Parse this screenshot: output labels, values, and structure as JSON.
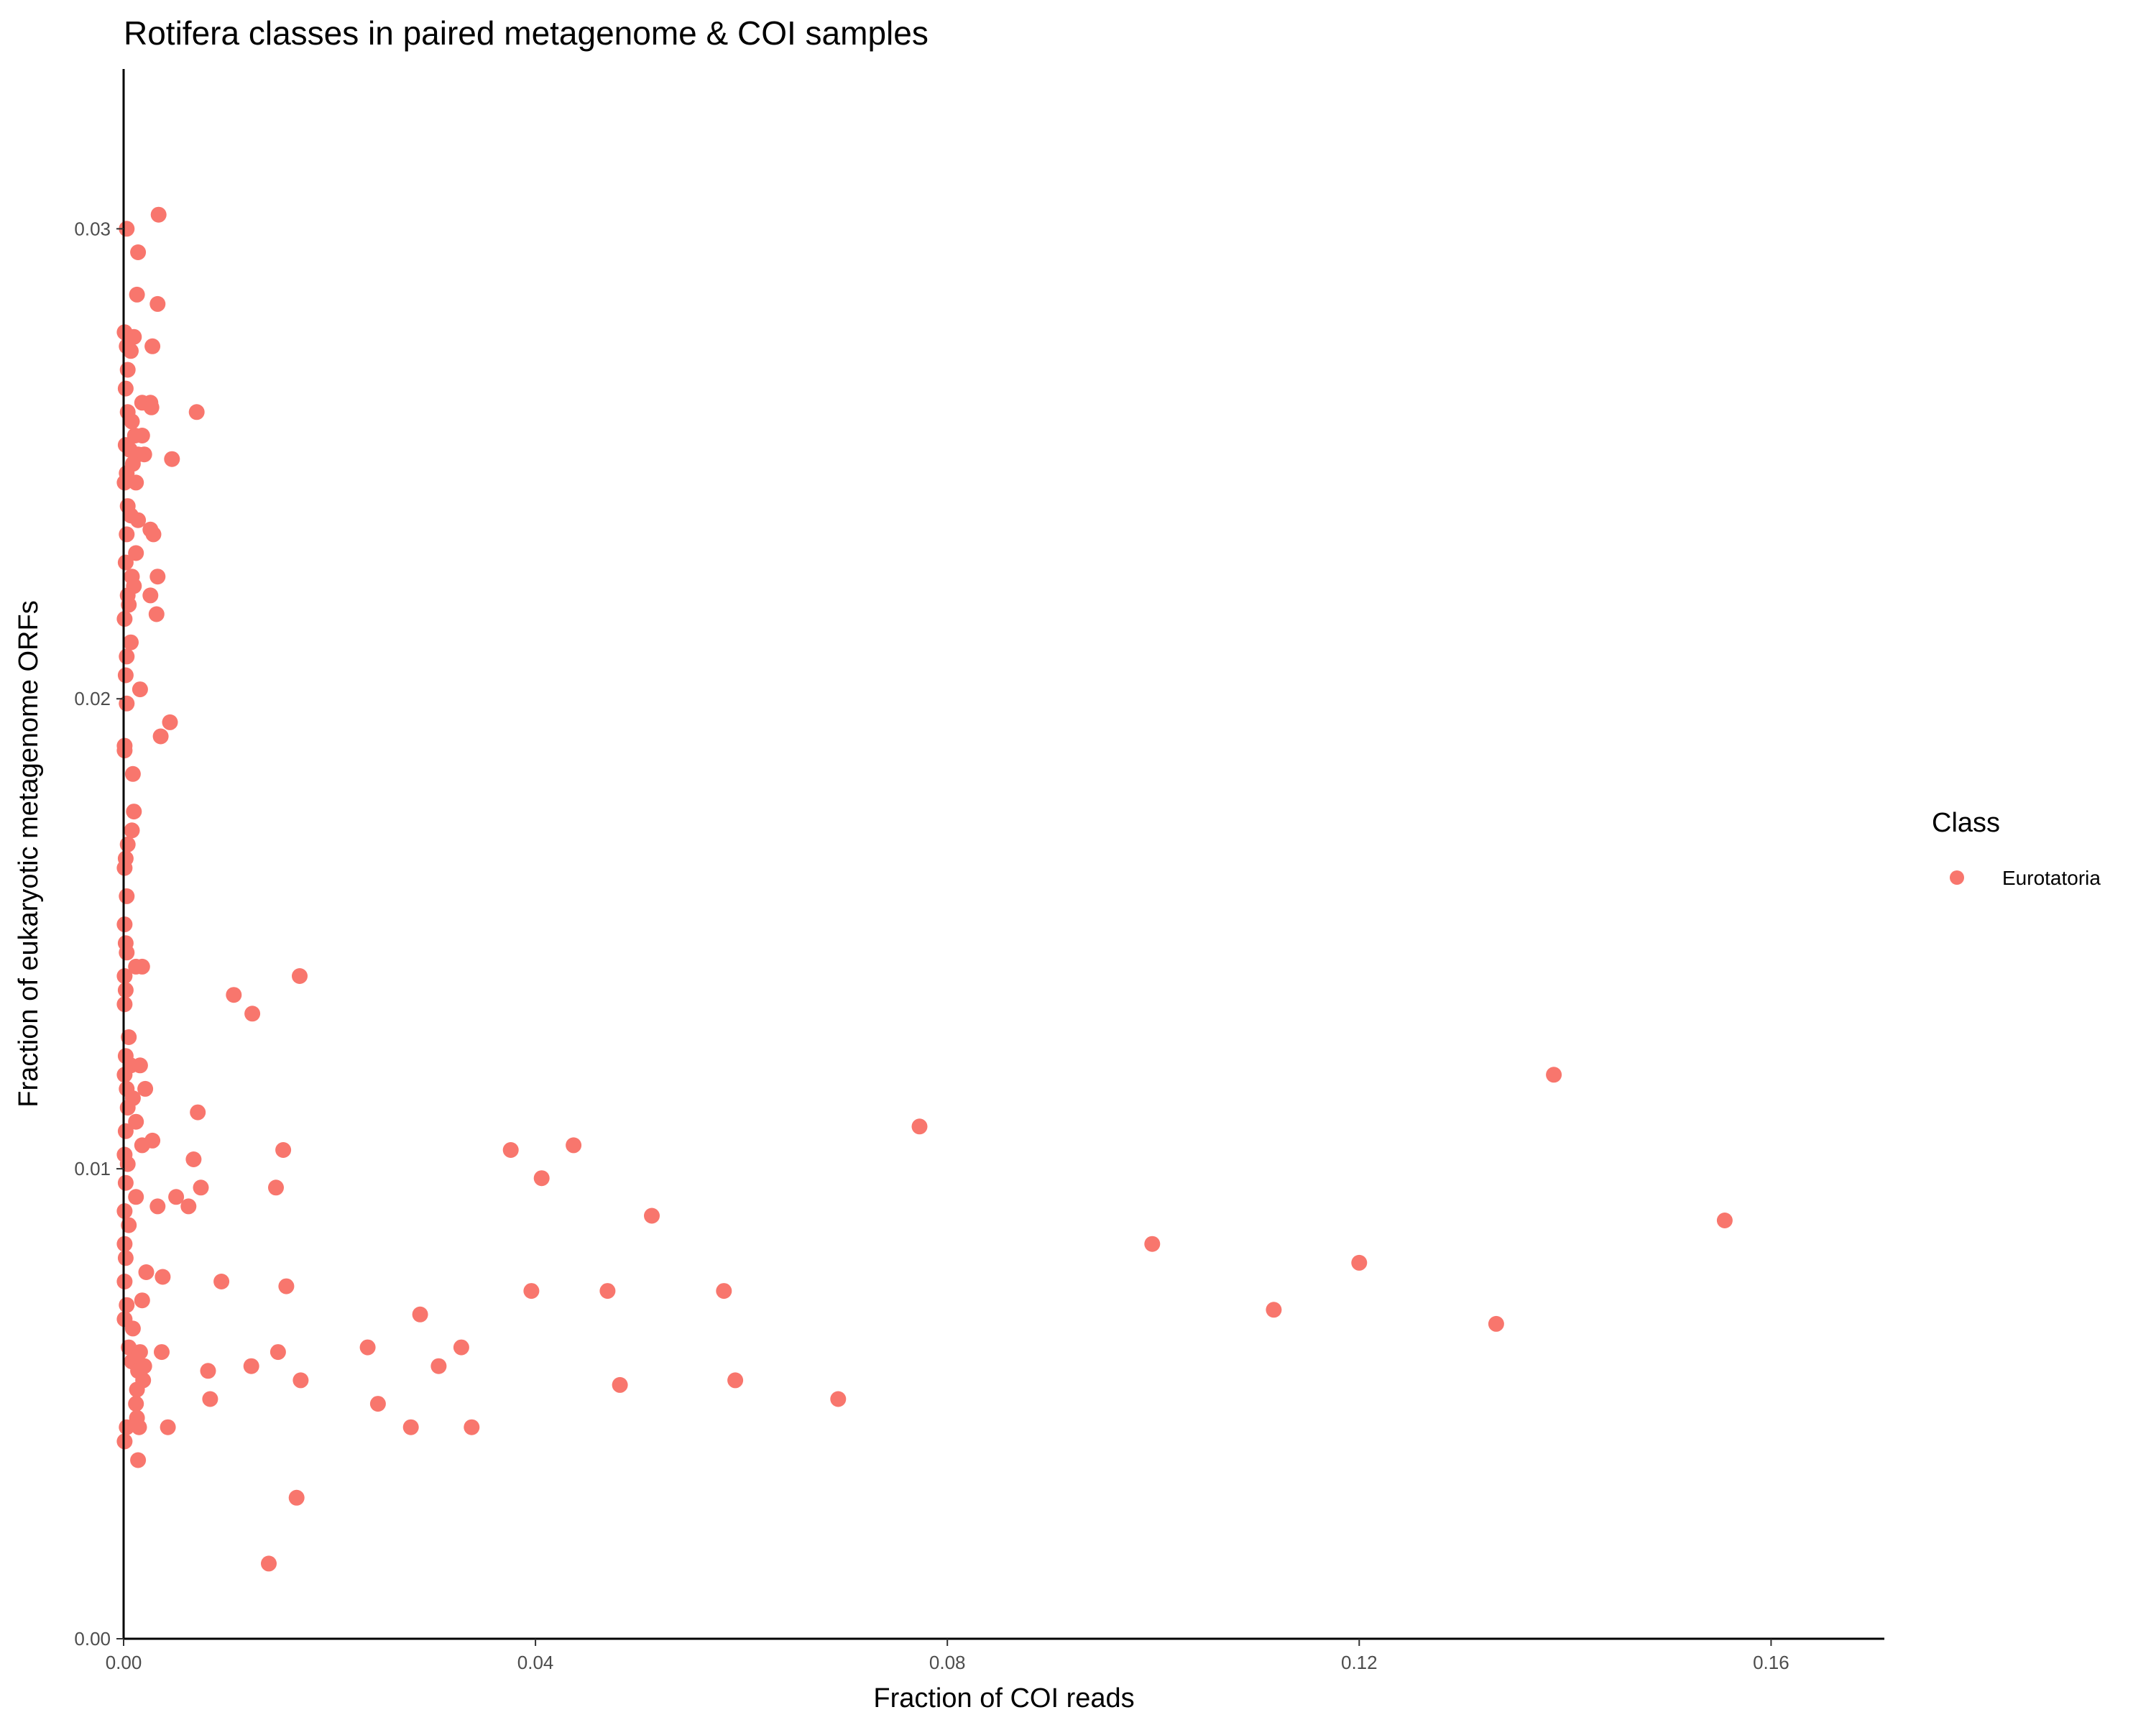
{
  "chart_data": {
    "type": "scatter",
    "title": "Rotifera classes in paired metagenome & COI samples",
    "xlabel": "Fraction of COI reads",
    "ylabel": "Fraction of eukaryotic metagenome ORFs",
    "xlim": [
      0,
      0.171
    ],
    "ylim": [
      0,
      0.0334
    ],
    "xticks": [
      0.0,
      0.04,
      0.08,
      0.12,
      0.16
    ],
    "xtick_labels": [
      "0.00",
      "0.04",
      "0.08",
      "0.12",
      "0.16"
    ],
    "yticks": [
      0.0,
      0.01,
      0.02,
      0.03
    ],
    "ytick_labels": [
      "0.00",
      "0.01",
      "0.02",
      "0.03"
    ],
    "grid": false,
    "legend": {
      "title": "Class",
      "position": "right",
      "entries": [
        {
          "name": "Eurotatoria",
          "color": "#F8766D"
        }
      ]
    },
    "colors": {
      "points": "#F8766D",
      "axis": "#000000",
      "tick_text": "#4d4d4d"
    },
    "series": [
      {
        "name": "Eurotatoria",
        "points": [
          [
            0.0003,
            0.03
          ],
          [
            0.0034,
            0.0303
          ],
          [
            0.0014,
            0.0295
          ],
          [
            0.0013,
            0.0286
          ],
          [
            0.0033,
            0.0284
          ],
          [
            0.0001,
            0.0278
          ],
          [
            0.0005,
            0.0277
          ],
          [
            0.001,
            0.0277
          ],
          [
            0.0003,
            0.0275
          ],
          [
            0.0007,
            0.0274
          ],
          [
            0.0028,
            0.0275
          ],
          [
            0.0004,
            0.027
          ],
          [
            0.0002,
            0.0266
          ],
          [
            0.0026,
            0.0263
          ],
          [
            0.0018,
            0.0263
          ],
          [
            0.0027,
            0.0262
          ],
          [
            0.0071,
            0.0261
          ],
          [
            0.0004,
            0.0261
          ],
          [
            0.0008,
            0.0259
          ],
          [
            0.0011,
            0.0256
          ],
          [
            0.0018,
            0.0256
          ],
          [
            0.0002,
            0.0254
          ],
          [
            0.0006,
            0.0253
          ],
          [
            0.002,
            0.0252
          ],
          [
            0.0014,
            0.0252
          ],
          [
            0.0047,
            0.0251
          ],
          [
            0.0009,
            0.025
          ],
          [
            0.0003,
            0.0248
          ],
          [
            0.0012,
            0.0246
          ],
          [
            0.0001,
            0.0246
          ],
          [
            0.0004,
            0.0241
          ],
          [
            0.0007,
            0.0239
          ],
          [
            0.0014,
            0.0238
          ],
          [
            0.0026,
            0.0236
          ],
          [
            0.0029,
            0.0235
          ],
          [
            0.0003,
            0.0235
          ],
          [
            0.0012,
            0.0231
          ],
          [
            0.0002,
            0.0229
          ],
          [
            0.0008,
            0.0226
          ],
          [
            0.0033,
            0.0226
          ],
          [
            0.001,
            0.0224
          ],
          [
            0.0004,
            0.0222
          ],
          [
            0.0026,
            0.0222
          ],
          [
            0.0005,
            0.022
          ],
          [
            0.0032,
            0.0218
          ],
          [
            0.0001,
            0.0217
          ],
          [
            0.0007,
            0.0212
          ],
          [
            0.0003,
            0.0209
          ],
          [
            0.0002,
            0.0205
          ],
          [
            0.0016,
            0.0202
          ],
          [
            0.0003,
            0.0199
          ],
          [
            0.0045,
            0.0195
          ],
          [
            0.0036,
            0.0192
          ],
          [
            0.0001,
            0.019
          ],
          [
            0.0001,
            0.0189
          ],
          [
            0.0009,
            0.0184
          ],
          [
            0.001,
            0.0176
          ],
          [
            0.0008,
            0.0172
          ],
          [
            0.0004,
            0.0169
          ],
          [
            0.0002,
            0.0166
          ],
          [
            0.0001,
            0.0164
          ],
          [
            0.0003,
            0.0158
          ],
          [
            0.0001,
            0.0152
          ],
          [
            0.0002,
            0.0148
          ],
          [
            0.0003,
            0.0146
          ],
          [
            0.0012,
            0.0143
          ],
          [
            0.0018,
            0.0143
          ],
          [
            0.0001,
            0.0141
          ],
          [
            0.0002,
            0.0138
          ],
          [
            0.0001,
            0.0135
          ],
          [
            0.0005,
            0.0128
          ],
          [
            0.0002,
            0.0124
          ],
          [
            0.0007,
            0.0122
          ],
          [
            0.0016,
            0.0122
          ],
          [
            0.0001,
            0.012
          ],
          [
            0.0003,
            0.0117
          ],
          [
            0.0021,
            0.0117
          ],
          [
            0.0009,
            0.0115
          ],
          [
            0.0004,
            0.0113
          ],
          [
            0.0012,
            0.011
          ],
          [
            0.0002,
            0.0108
          ],
          [
            0.0028,
            0.0106
          ],
          [
            0.0018,
            0.0105
          ],
          [
            0.0001,
            0.0103
          ],
          [
            0.0004,
            0.0101
          ],
          [
            0.0002,
            0.0097
          ],
          [
            0.0012,
            0.0094
          ],
          [
            0.0001,
            0.0091
          ],
          [
            0.0005,
            0.0088
          ],
          [
            0.0001,
            0.0084
          ],
          [
            0.0002,
            0.0081
          ],
          [
            0.0022,
            0.0078
          ],
          [
            0.0038,
            0.0077
          ],
          [
            0.0001,
            0.0076
          ],
          [
            0.0018,
            0.0072
          ],
          [
            0.0003,
            0.0071
          ],
          [
            0.0001,
            0.0068
          ],
          [
            0.0009,
            0.0066
          ],
          [
            0.0005,
            0.0062
          ],
          [
            0.0016,
            0.0061
          ],
          [
            0.0037,
            0.0061
          ],
          [
            0.0008,
            0.0059
          ],
          [
            0.002,
            0.0058
          ],
          [
            0.0014,
            0.0057
          ],
          [
            0.0019,
            0.0055
          ],
          [
            0.0013,
            0.0053
          ],
          [
            0.0012,
            0.005
          ],
          [
            0.0013,
            0.0047
          ],
          [
            0.0003,
            0.0045
          ],
          [
            0.0015,
            0.0045
          ],
          [
            0.0001,
            0.0042
          ],
          [
            0.0014,
            0.0038
          ],
          [
            0.0033,
            0.0092
          ],
          [
            0.0051,
            0.0094
          ],
          [
            0.0063,
            0.0092
          ],
          [
            0.0068,
            0.0102
          ],
          [
            0.0072,
            0.0112
          ],
          [
            0.0075,
            0.0096
          ],
          [
            0.0082,
            0.0057
          ],
          [
            0.0084,
            0.0051
          ],
          [
            0.0043,
            0.0045
          ],
          [
            0.0095,
            0.0076
          ],
          [
            0.0107,
            0.0137
          ],
          [
            0.0125,
            0.0133
          ],
          [
            0.0124,
            0.0058
          ],
          [
            0.0148,
            0.0096
          ],
          [
            0.015,
            0.0061
          ],
          [
            0.0155,
            0.0104
          ],
          [
            0.0158,
            0.0075
          ],
          [
            0.0171,
            0.0141
          ],
          [
            0.0172,
            0.0055
          ],
          [
            0.0168,
            0.003
          ],
          [
            0.0141,
            0.0016
          ],
          [
            0.0237,
            0.0062
          ],
          [
            0.0247,
            0.005
          ],
          [
            0.0279,
            0.0045
          ],
          [
            0.0288,
            0.0069
          ],
          [
            0.0306,
            0.0058
          ],
          [
            0.0328,
            0.0062
          ],
          [
            0.0338,
            0.0045
          ],
          [
            0.0376,
            0.0104
          ],
          [
            0.0396,
            0.0074
          ],
          [
            0.0406,
            0.0098
          ],
          [
            0.0437,
            0.0105
          ],
          [
            0.047,
            0.0074
          ],
          [
            0.0482,
            0.0054
          ],
          [
            0.0513,
            0.009
          ],
          [
            0.0583,
            0.0074
          ],
          [
            0.0594,
            0.0055
          ],
          [
            0.0694,
            0.0051
          ],
          [
            0.0773,
            0.0109
          ],
          [
            0.0999,
            0.0084
          ],
          [
            0.1117,
            0.007
          ],
          [
            0.12,
            0.008
          ],
          [
            0.1333,
            0.0067
          ],
          [
            0.1389,
            0.012
          ],
          [
            0.1555,
            0.0089
          ]
        ]
      }
    ]
  }
}
